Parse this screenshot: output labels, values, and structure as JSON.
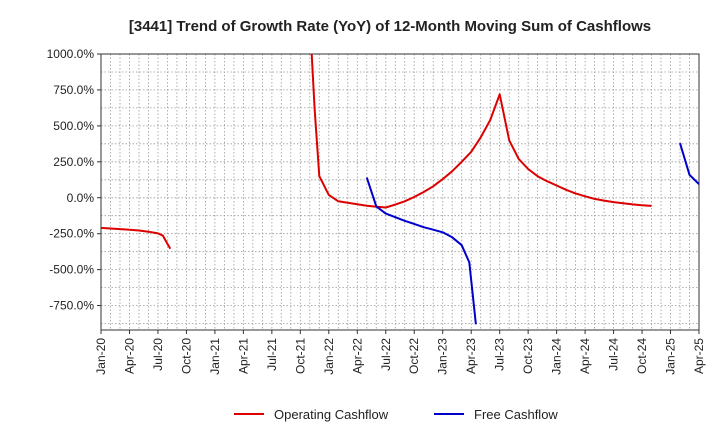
{
  "chart_data": {
    "type": "line",
    "title": "[3441]  Trend of Growth Rate (YoY) of 12-Month Moving Sum of Cashflows",
    "xlabel": "",
    "ylabel": "",
    "ylim": [
      -920,
      1000
    ],
    "y_ticks": [
      "1000.0%",
      "750.0%",
      "500.0%",
      "250.0%",
      "0.0%",
      "-250.0%",
      "-500.0%",
      "-750.0%"
    ],
    "y_tick_values": [
      1000,
      750,
      500,
      250,
      0,
      -250,
      -500,
      -750
    ],
    "x_ticks": [
      "Jan-20",
      "Apr-20",
      "Jul-20",
      "Oct-20",
      "Jan-21",
      "Apr-21",
      "Jul-21",
      "Oct-21",
      "Jan-22",
      "Apr-22",
      "Jul-22",
      "Oct-22",
      "Jan-23",
      "Apr-23",
      "Jul-23",
      "Oct-23",
      "Jan-24",
      "Apr-24",
      "Jul-24",
      "Oct-24",
      "Jan-25",
      "Apr-25"
    ],
    "x_range_months": [
      0,
      63
    ],
    "grid": true,
    "legend_position": "bottom",
    "series": [
      {
        "name": "Operating Cashflow",
        "color": "#dd0000",
        "segments": [
          [
            [
              0,
              -210
            ],
            [
              2,
              -218
            ],
            [
              3,
              -222
            ],
            [
              4,
              -228
            ],
            [
              5,
              -236
            ],
            [
              6,
              -248
            ],
            [
              6.5,
              -262
            ],
            [
              7,
              -320
            ],
            [
              7.3,
              -355
            ]
          ],
          [
            [
              22.2,
              1000
            ],
            [
              22.5,
              620
            ],
            [
              23,
              150
            ],
            [
              24,
              20
            ],
            [
              25,
              -25
            ],
            [
              26,
              -35
            ],
            [
              27,
              -45
            ],
            [
              28,
              -55
            ],
            [
              29,
              -62
            ],
            [
              30,
              -68
            ],
            [
              31,
              -48
            ],
            [
              32,
              -25
            ],
            [
              33,
              5
            ],
            [
              34,
              40
            ],
            [
              35,
              80
            ],
            [
              36,
              130
            ],
            [
              37,
              185
            ],
            [
              38,
              250
            ],
            [
              39,
              320
            ],
            [
              40,
              420
            ],
            [
              41,
              540
            ],
            [
              42,
              720
            ],
            [
              43,
              400
            ],
            [
              44,
              270
            ],
            [
              45,
              200
            ],
            [
              46,
              150
            ],
            [
              47,
              115
            ],
            [
              48,
              85
            ],
            [
              49,
              55
            ],
            [
              50,
              30
            ],
            [
              51,
              10
            ],
            [
              52,
              -8
            ],
            [
              53,
              -20
            ],
            [
              54,
              -30
            ],
            [
              55,
              -38
            ],
            [
              56,
              -46
            ],
            [
              57,
              -52
            ],
            [
              58,
              -57
            ]
          ]
        ]
      },
      {
        "name": "Free Cashflow",
        "color": "#0000cc",
        "segments": [
          [
            [
              28,
              140
            ],
            [
              29,
              -60
            ],
            [
              30,
              -110
            ],
            [
              31,
              -135
            ],
            [
              32,
              -160
            ],
            [
              33,
              -182
            ],
            [
              34,
              -205
            ],
            [
              35,
              -222
            ],
            [
              36,
              -240
            ],
            [
              37,
              -275
            ],
            [
              38,
              -330
            ],
            [
              38.8,
              -450
            ],
            [
              39.5,
              -880
            ]
          ],
          [
            [
              61,
              380
            ],
            [
              62,
              160
            ],
            [
              63,
              95
            ]
          ]
        ]
      }
    ]
  }
}
